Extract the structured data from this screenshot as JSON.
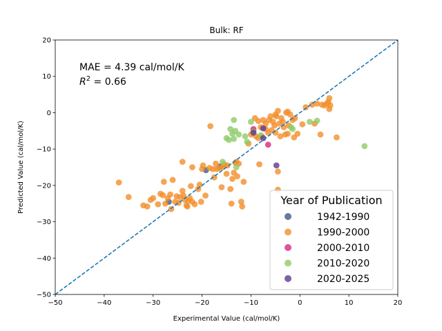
{
  "chart_data": {
    "type": "scatter",
    "title": "Bulk: RF",
    "xlabel": "Experimental Value (cal/mol/K)",
    "ylabel": "Predicted Value (cal/mol/K)",
    "xlim": [
      -50,
      20
    ],
    "ylim": [
      -50,
      20
    ],
    "xticks": [
      "−50",
      "−40",
      "−30",
      "−20",
      "−10",
      "0",
      "10",
      "20"
    ],
    "yticks": [
      "−50",
      "−40",
      "−30",
      "−20",
      "−10",
      "0",
      "10",
      "20"
    ],
    "annotation": {
      "mae": "MAE = 4.39 cal/mol/K",
      "r2_prefix": "R",
      "r2_sup": "2",
      "r2_suffix": " = 0.66"
    },
    "reference_line": {
      "style": "dashed",
      "color": "#1f77b4",
      "x": [
        -50,
        20
      ],
      "y": [
        -50,
        20
      ]
    },
    "legend": {
      "title": "Year of Publication",
      "placement": "lower-right"
    },
    "series": [
      {
        "name": "1942-1990",
        "color": "#3b5a8c",
        "points": [
          [
            -26.8,
            -24.5
          ],
          [
            -19.2,
            -15.8
          ],
          [
            -16.3,
            -14.8
          ]
        ]
      },
      {
        "name": "1990-2000",
        "color": "#f28e2b",
        "points": [
          [
            -37.0,
            -19.2
          ],
          [
            -35.0,
            -23.2
          ],
          [
            -32.0,
            -25.5
          ],
          [
            -31.2,
            -25.8
          ],
          [
            -30.5,
            -24.0
          ],
          [
            -30.0,
            -23.5
          ],
          [
            -29.0,
            -25.2
          ],
          [
            -28.5,
            -22.3
          ],
          [
            -28.0,
            -22.7
          ],
          [
            -27.8,
            -19.0
          ],
          [
            -27.5,
            -25.0
          ],
          [
            -27.0,
            -23.5
          ],
          [
            -26.5,
            -22.5
          ],
          [
            -26.3,
            -26.5
          ],
          [
            -26.0,
            -18.5
          ],
          [
            -25.5,
            -24.5
          ],
          [
            -25.2,
            -23.0
          ],
          [
            -24.8,
            -24.8
          ],
          [
            -24.5,
            -23.2
          ],
          [
            -24.0,
            -13.5
          ],
          [
            -24.0,
            -21.5
          ],
          [
            -23.8,
            -22.8
          ],
          [
            -23.5,
            -24.0
          ],
          [
            -23.2,
            -25.5
          ],
          [
            -23.0,
            -25.8
          ],
          [
            -22.8,
            -24.2
          ],
          [
            -22.5,
            -23.5
          ],
          [
            -22.3,
            -20.2
          ],
          [
            -22.0,
            -15.0
          ],
          [
            -22.0,
            -24.5
          ],
          [
            -21.5,
            -25.2
          ],
          [
            -20.8,
            -21.0
          ],
          [
            -20.5,
            -19.8
          ],
          [
            -20.2,
            -24.5
          ],
          [
            -20.0,
            -15.5
          ],
          [
            -19.8,
            -14.5
          ],
          [
            -19.3,
            -22.8
          ],
          [
            -18.3,
            -3.7
          ],
          [
            -18.5,
            -15.2
          ],
          [
            -17.8,
            -15.5
          ],
          [
            -17.5,
            -17.8
          ],
          [
            -17.2,
            -14.0
          ],
          [
            -17.0,
            -15.5
          ],
          [
            -16.5,
            -15.2
          ],
          [
            -16.0,
            -20.5
          ],
          [
            -15.8,
            -15.0
          ],
          [
            -15.5,
            -14.2
          ],
          [
            -15.0,
            -16.8
          ],
          [
            -14.8,
            -14.5
          ],
          [
            -14.2,
            -21.0
          ],
          [
            -14.0,
            -25.0
          ],
          [
            -13.8,
            -18.2
          ],
          [
            -13.5,
            -16.5
          ],
          [
            -13.2,
            -13.8
          ],
          [
            -13.0,
            -13.5
          ],
          [
            -12.8,
            -17.5
          ],
          [
            -12.5,
            -14.0
          ],
          [
            -12.0,
            -24.5
          ],
          [
            -11.8,
            -25.8
          ],
          [
            -11.5,
            -19.0
          ],
          [
            -10.5,
            -8.5
          ],
          [
            -10.0,
            -6.0
          ],
          [
            -9.5,
            -5.0
          ],
          [
            -9.2,
            -1.5
          ],
          [
            -9.0,
            -6.5
          ],
          [
            -8.5,
            -7.0
          ],
          [
            -8.5,
            -2.3
          ],
          [
            -8.3,
            -14.2
          ],
          [
            -8.0,
            -4.0
          ],
          [
            -7.8,
            -6.5
          ],
          [
            -7.5,
            -2.0
          ],
          [
            -7.0,
            -4.5
          ],
          [
            -7.0,
            -3.0
          ],
          [
            -6.5,
            -5.5
          ],
          [
            -6.3,
            -2.0
          ],
          [
            -6.0,
            -1.0
          ],
          [
            -5.8,
            -4.8
          ],
          [
            -5.5,
            -2.5
          ],
          [
            -5.2,
            -3.5
          ],
          [
            -5.0,
            -0.5
          ],
          [
            -5.0,
            -5.5
          ],
          [
            -4.8,
            -1.0
          ],
          [
            -4.5,
            0.5
          ],
          [
            -4.5,
            -16.2
          ],
          [
            -4.5,
            -21.2
          ],
          [
            -4.2,
            -3.0
          ],
          [
            -4.0,
            -6.5
          ],
          [
            -3.8,
            -1.5
          ],
          [
            -3.5,
            -2.5
          ],
          [
            -3.3,
            -4.0
          ],
          [
            -3.0,
            -6.0
          ],
          [
            -2.8,
            0.0
          ],
          [
            -2.5,
            0.3
          ],
          [
            -2.5,
            -5.8
          ],
          [
            -2.3,
            -3.5
          ],
          [
            -2.0,
            -0.5
          ],
          [
            -1.5,
            -2.0
          ],
          [
            -1.2,
            -6.8
          ],
          [
            -1.0,
            -1.5
          ],
          [
            -0.5,
            -5.8
          ],
          [
            0.5,
            -3.2
          ],
          [
            1.2,
            1.5
          ],
          [
            2.5,
            2.2
          ],
          [
            3.0,
            -3.0
          ],
          [
            3.5,
            2.5
          ],
          [
            4.2,
            -6.0
          ],
          [
            4.5,
            2.2
          ],
          [
            5.0,
            2.0
          ],
          [
            5.5,
            2.5
          ],
          [
            5.8,
            3.0
          ],
          [
            6.0,
            4.0
          ],
          [
            6.0,
            1.0
          ],
          [
            6.2,
            2.0
          ],
          [
            7.5,
            -6.8
          ]
        ]
      },
      {
        "name": "2000-2010",
        "color": "#d62a7e",
        "points": [
          [
            -9.5,
            -4.5
          ],
          [
            -6.5,
            -8.8
          ]
        ]
      },
      {
        "name": "2010-2020",
        "color": "#8fcb68",
        "points": [
          [
            -15.8,
            -13.5
          ],
          [
            -15.0,
            -7.0
          ],
          [
            -14.5,
            -7.5
          ],
          [
            -14.2,
            -4.5
          ],
          [
            -13.8,
            -5.8
          ],
          [
            -13.5,
            -2.0
          ],
          [
            -13.2,
            -5.0
          ],
          [
            -13.5,
            -7.2
          ],
          [
            -13.0,
            -15.0
          ],
          [
            -12.5,
            -6.0
          ],
          [
            -11.2,
            -6.5
          ],
          [
            -10.8,
            -8.0
          ],
          [
            -10.0,
            -2.5
          ],
          [
            -9.5,
            -5.2
          ],
          [
            -8.0,
            -6.2
          ],
          [
            -1.8,
            -4.0
          ],
          [
            -1.5,
            -4.5
          ],
          [
            2.0,
            -2.5
          ],
          [
            3.5,
            -2.2
          ],
          [
            13.2,
            -9.2
          ]
        ]
      },
      {
        "name": "2020-2025",
        "color": "#5c3a8e",
        "points": [
          [
            -9.5,
            -5.5
          ],
          [
            -7.5,
            -4.3
          ],
          [
            -7.5,
            -7.0
          ],
          [
            -4.8,
            -14.5
          ]
        ]
      }
    ]
  }
}
